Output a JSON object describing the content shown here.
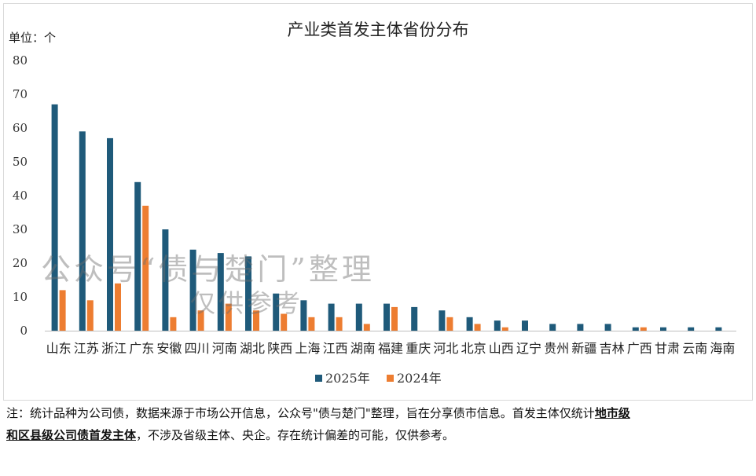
{
  "chart_data": {
    "type": "bar",
    "title": "产业类首发主体省份分布",
    "unit_label": "单位：个",
    "ylim": [
      0,
      80
    ],
    "yticks": [
      0,
      10,
      20,
      30,
      40,
      50,
      60,
      70,
      80
    ],
    "grid": false,
    "legend_position": "bottom",
    "categories": [
      "山东",
      "江苏",
      "浙江",
      "广东",
      "安徽",
      "四川",
      "河南",
      "湖北",
      "陕西",
      "上海",
      "江西",
      "湖南",
      "福建",
      "重庆",
      "河北",
      "北京",
      "山西",
      "辽宁",
      "贵州",
      "新疆",
      "吉林",
      "广西",
      "甘肃",
      "云南",
      "海南"
    ],
    "series": [
      {
        "name": "2025年",
        "color": "#1F5A7A",
        "values": [
          67,
          59,
          57,
          44,
          30,
          24,
          23,
          22,
          11,
          9,
          8,
          8,
          8,
          7,
          6,
          4,
          3,
          3,
          2,
          2,
          2,
          1,
          1,
          1,
          1
        ]
      },
      {
        "name": "2024年",
        "color": "#ED7D31",
        "values": [
          12,
          9,
          14,
          37,
          4,
          6,
          8,
          6,
          5,
          4,
          4,
          2,
          7,
          0,
          4,
          2,
          1,
          0,
          0,
          0,
          0,
          1,
          0,
          0,
          0
        ]
      }
    ]
  },
  "watermark": {
    "line1": "公众号“债与楚门”整理",
    "line2": "仅供参考"
  },
  "note": {
    "part1": "注：统计品种为公司债，数据来源于市场公开信息，公众号\"债与楚门\"整理，旨在分享债市信息。首发主体仅统计",
    "highlight": "地市级和区县级公司债首发主体",
    "part2": "，不涉及省级主体、央企。存在统计偏差的可能，仅供参考。"
  }
}
